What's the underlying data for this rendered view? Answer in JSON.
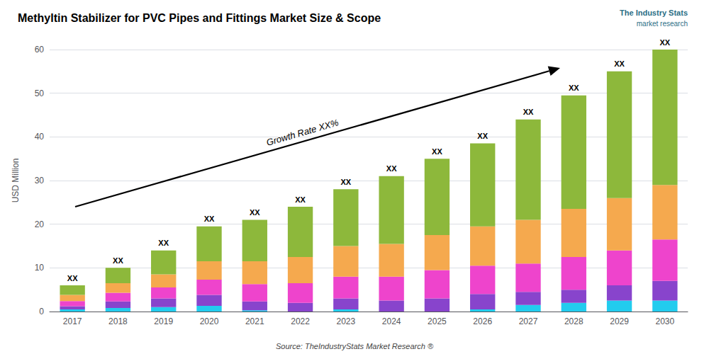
{
  "chart_data": {
    "type": "bar",
    "stacked": true,
    "title": "Methyltin Stabilizer for PVC Pipes and Fittings Market Size & Scope",
    "ylabel": "USD Million",
    "annotations": [
      "Growth Rate XX%",
      "The Industry Stats",
      "market research",
      "Source: TheIndustryStats Market Research ®"
    ],
    "categories": [
      "2017",
      "2018",
      "2019",
      "2020",
      "2021",
      "2022",
      "2023",
      "2024",
      "2025",
      "2026",
      "2027",
      "2028",
      "2029",
      "2030"
    ],
    "series": [
      {
        "color": "#22ccee",
        "values": [
          0.5,
          0.8,
          1.0,
          1.3,
          0.3,
          0.0,
          0.5,
          0.0,
          0.0,
          0.5,
          1.5,
          2.0,
          2.5,
          2.5
        ]
      },
      {
        "color": "#8844cc",
        "values": [
          0.7,
          1.5,
          2.0,
          2.5,
          2.0,
          2.0,
          2.5,
          2.5,
          3.0,
          3.5,
          3.0,
          3.0,
          3.5,
          4.5
        ]
      },
      {
        "color": "#ee44cc",
        "values": [
          1.2,
          2.0,
          2.5,
          3.5,
          4.0,
          4.5,
          5.0,
          5.5,
          6.5,
          6.5,
          6.5,
          7.5,
          8.0,
          9.5
        ]
      },
      {
        "color": "#f5a94e",
        "values": [
          1.4,
          2.2,
          3.0,
          4.2,
          5.2,
          6.0,
          7.0,
          7.5,
          8.0,
          9.0,
          10.0,
          11.0,
          12.0,
          12.5
        ]
      },
      {
        "color": "#8db83b",
        "values": [
          2.2,
          3.5,
          5.5,
          8.0,
          9.5,
          11.5,
          13.0,
          15.5,
          17.5,
          19.0,
          23.0,
          26.0,
          29.0,
          31.0
        ],
        "value_labels": [
          "XX",
          "XX",
          "XX",
          "XX",
          "XX",
          "XX",
          "XX",
          "XX",
          "XX",
          "XX",
          "XX",
          "XX",
          "XX",
          "XX"
        ]
      }
    ],
    "ylim": [
      0,
      60
    ],
    "yticks": [
      0,
      10,
      20,
      30,
      40,
      50,
      60
    ],
    "grid": true
  }
}
